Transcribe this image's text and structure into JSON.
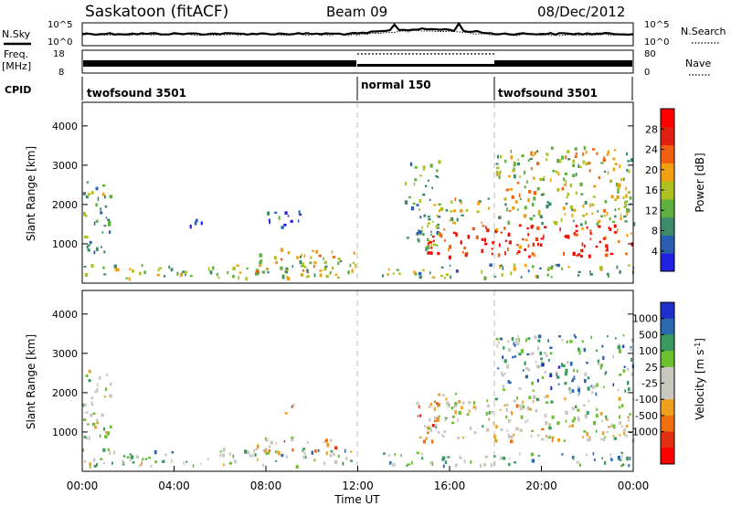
{
  "header": {
    "station": "Saskatoon (fitACF)",
    "beam": "Beam 09",
    "date": "08/Dec/2012"
  },
  "noise_panel": {
    "label_left": "N.Sky",
    "label_right": "N.Search",
    "tick_top": "10^5",
    "tick_bottom": "10^0"
  },
  "freq_panel": {
    "label_left_1": "Freq.",
    "label_left_2": "[MHz]",
    "label_right": "Nave",
    "tick_left_top": "18",
    "tick_left_bottom": "8",
    "tick_right_top": "80",
    "tick_right_bottom": "0"
  },
  "cpid": {
    "label": "CPID",
    "segments": [
      {
        "name": "twofsound 3501",
        "start_hour": 0
      },
      {
        "name": "normal 150",
        "start_hour": 12
      },
      {
        "name": "twofsound 3501",
        "start_hour": 18
      }
    ]
  },
  "colors": {
    "power": [
      "#2020e0",
      "#2a5fb0",
      "#3d8a6a",
      "#60b040",
      "#b0c020",
      "#f0a010",
      "#f06010",
      "#e02010",
      "#ff0000"
    ],
    "velocity": [
      "#1d2fc8",
      "#2a68b0",
      "#3a9a60",
      "#6cc030",
      "#c8c8c0",
      "#c8c8c0",
      "#f0a020",
      "#f07010",
      "#e03010",
      "#ff0000"
    ]
  },
  "chart_data": [
    {
      "type": "heatmap",
      "name": "power",
      "ylabel": "Slant Range [km]",
      "xlim": [
        "00:00",
        "24:00"
      ],
      "ylim": [
        0,
        4600
      ],
      "y_ticks": [
        1000,
        2000,
        3000,
        4000
      ],
      "colorbar": {
        "label": "Power [dB]",
        "range": [
          0,
          32
        ],
        "ticks": [
          4,
          8,
          12,
          16,
          20,
          24,
          28
        ]
      },
      "regions": [
        {
          "t0": 0.0,
          "t1": 1.2,
          "r0": 800,
          "r1": 2600,
          "level": 0.35
        },
        {
          "t0": 0.0,
          "t1": 12.0,
          "r0": 150,
          "r1": 500,
          "level": 0.45
        },
        {
          "t0": 7.5,
          "t1": 12.0,
          "r0": 300,
          "r1": 900,
          "level": 0.5
        },
        {
          "t0": 4.5,
          "t1": 5.2,
          "r0": 1400,
          "r1": 1700,
          "level": 0.2
        },
        {
          "t0": 8.0,
          "t1": 9.5,
          "r0": 1400,
          "r1": 1900,
          "level": 0.2
        },
        {
          "t0": 14.0,
          "t1": 15.5,
          "r0": 900,
          "r1": 3200,
          "level": 0.35
        },
        {
          "t0": 15.0,
          "t1": 24.0,
          "r0": 700,
          "r1": 1500,
          "level": 0.85
        },
        {
          "t0": 15.0,
          "t1": 24.0,
          "r0": 1500,
          "r1": 2200,
          "level": 0.45
        },
        {
          "t0": 18.0,
          "t1": 24.0,
          "r0": 2200,
          "r1": 3500,
          "level": 0.5
        },
        {
          "t0": 13.0,
          "t1": 24.0,
          "r0": 150,
          "r1": 500,
          "level": 0.4
        }
      ]
    },
    {
      "type": "heatmap",
      "name": "velocity",
      "xlabel": "Time UT",
      "ylabel": "Slant Range [km]",
      "x_ticks": [
        "00:00",
        "04:00",
        "08:00",
        "12:00",
        "16:00",
        "20:00",
        "00:00"
      ],
      "xlim": [
        "00:00",
        "24:00"
      ],
      "ylim": [
        0,
        4600
      ],
      "y_ticks": [
        1000,
        2000,
        3000,
        4000
      ],
      "colorbar": {
        "label": "Velocity [m s^-1]",
        "tick_labels": [
          "1000",
          "500",
          "100",
          "25",
          "-25",
          "-100",
          "-500",
          "-1000"
        ]
      },
      "regions": [
        {
          "t0": 0.0,
          "t1": 1.2,
          "r0": 800,
          "r1": 2600,
          "level": 0.45
        },
        {
          "t0": 0.0,
          "t1": 12.0,
          "r0": 150,
          "r1": 600,
          "level": 0.4
        },
        {
          "t0": 7.5,
          "t1": 11.0,
          "r0": 500,
          "r1": 900,
          "level": 0.6
        },
        {
          "t0": 8.5,
          "t1": 9.2,
          "r0": 1500,
          "r1": 1800,
          "level": 0.7
        },
        {
          "t0": 14.5,
          "t1": 15.5,
          "r0": 800,
          "r1": 1800,
          "level": 0.75
        },
        {
          "t0": 15.0,
          "t1": 24.0,
          "r0": 800,
          "r1": 2000,
          "level": 0.5
        },
        {
          "t0": 18.0,
          "t1": 24.0,
          "r0": 2000,
          "r1": 3500,
          "level": 0.3
        },
        {
          "t0": 13.0,
          "t1": 24.0,
          "r0": 150,
          "r1": 500,
          "level": 0.35
        }
      ]
    }
  ]
}
